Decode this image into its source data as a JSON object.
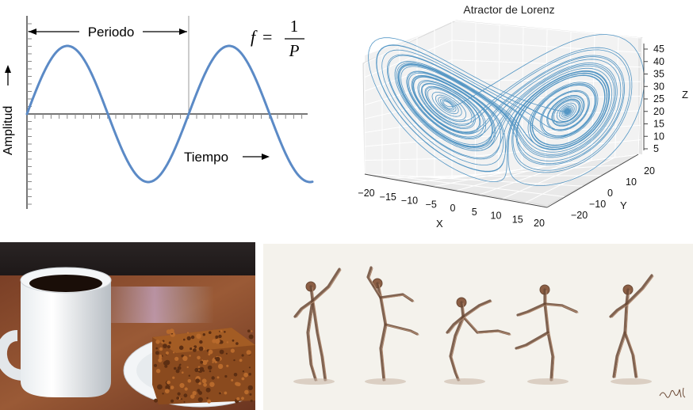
{
  "sine_panel": {
    "period_label": "Periodo",
    "time_label": "Tiempo",
    "amplitude_label": "Amplitud",
    "formula": {
      "lhs": "f",
      "eq": "=",
      "numerator": "1",
      "denominator": "P"
    },
    "wave_color": "#5b8ac6"
  },
  "lorenz_panel": {
    "title": "Atractor de Lorenz",
    "x_axis": {
      "label": "X",
      "ticks": [
        "−20",
        "−15",
        "−10",
        "−5",
        "0",
        "5",
        "10",
        "15",
        "20"
      ]
    },
    "y_axis": {
      "label": "Y",
      "ticks": [
        "−20",
        "−10",
        "0",
        "10",
        "20"
      ]
    },
    "z_axis": {
      "label": "Z",
      "ticks": [
        "5",
        "10",
        "15",
        "20",
        "25",
        "30",
        "35",
        "40",
        "45"
      ]
    },
    "curve_color": "#1f77b4"
  },
  "coffee_panel": {
    "description_icons": [
      "coffee-mug-icon",
      "cake-slice-icon",
      "plate-icon"
    ]
  },
  "dancer_panel": {
    "dancer_count": 5,
    "ink_color": "#6b4a36"
  }
}
